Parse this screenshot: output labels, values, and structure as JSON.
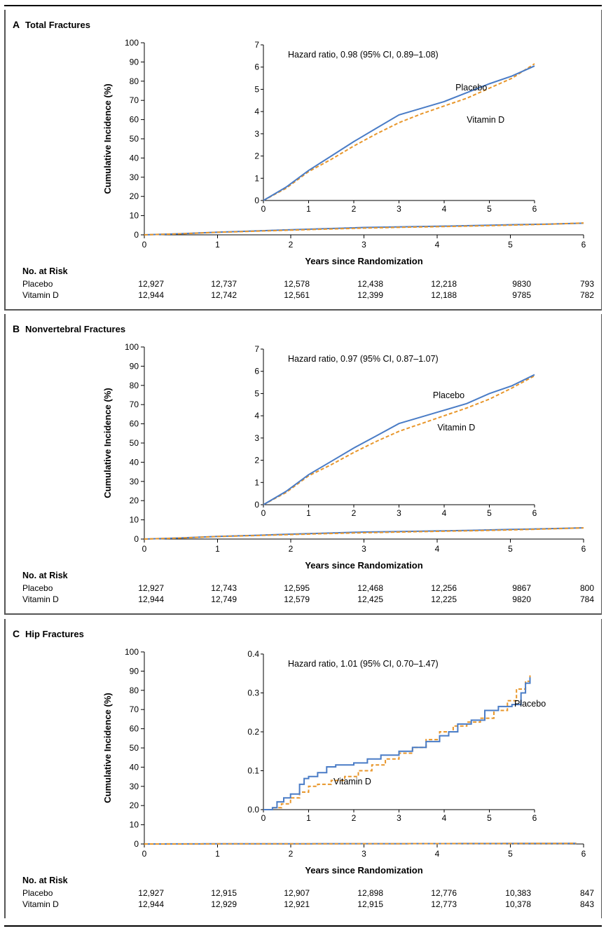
{
  "panels": [
    {
      "letter": "A",
      "title": "Total Fractures",
      "chart_data": {
        "type": "line",
        "ylabel": "Cumulative Incidence (%)",
        "xlabel": "Years since Randomization",
        "xlim": [
          0,
          6
        ],
        "ylim": [
          0,
          100
        ],
        "xticks": [
          "0",
          "1",
          "2",
          "3",
          "4",
          "5",
          "6"
        ],
        "yticks": [
          "0",
          "10",
          "20",
          "30",
          "40",
          "50",
          "60",
          "70",
          "80",
          "90",
          "100"
        ],
        "series": [
          {
            "name": "Placebo",
            "color": "#4a7cc6",
            "style": "solid",
            "x": [
              0,
              0.5,
              1,
              1.5,
              2,
              2.5,
              3,
              3.5,
              4,
              4.5,
              5,
              5.5,
              6
            ],
            "y": [
              0,
              0.6,
              1.35,
              2.0,
              2.65,
              3.25,
              3.85,
              4.15,
              4.45,
              4.85,
              5.25,
              5.6,
              6.05
            ]
          },
          {
            "name": "Vitamin D",
            "color": "#e8962a",
            "style": "dashed",
            "x": [
              0,
              0.5,
              1,
              1.5,
              2,
              2.5,
              3,
              3.5,
              4,
              4.5,
              5,
              5.5,
              6
            ],
            "y": [
              0,
              0.55,
              1.3,
              1.85,
              2.45,
              3.0,
              3.5,
              3.9,
              4.25,
              4.6,
              5.05,
              5.5,
              6.15
            ]
          }
        ],
        "inset": {
          "ylim": [
            0,
            7
          ],
          "yticks": [
            "0",
            "1",
            "2",
            "3",
            "4",
            "5",
            "6",
            "7"
          ],
          "xticks": [
            "0",
            "1",
            "2",
            "3",
            "4",
            "5",
            "6"
          ],
          "annotation": "Hazard ratio, 0.98 (95% CI, 0.89–1.08)",
          "labels": [
            {
              "text": "Placebo",
              "x": 4.25,
              "y": 4.95
            },
            {
              "text": "Vitamin D",
              "x": 4.5,
              "y": 3.5
            }
          ]
        }
      },
      "risk": {
        "title": "No. at Risk",
        "rows": [
          {
            "label": "Placebo",
            "values": [
              "12,927",
              "12,737",
              "12,578",
              "12,438",
              "12,218",
              "9830",
              "793"
            ]
          },
          {
            "label": "Vitamin D",
            "values": [
              "12,944",
              "12,742",
              "12,561",
              "12,399",
              "12,188",
              "9785",
              "782"
            ]
          }
        ]
      }
    },
    {
      "letter": "B",
      "title": "Nonvertebral Fractures",
      "chart_data": {
        "type": "line",
        "ylabel": "Cumulative Incidence (%)",
        "xlabel": "Years since Randomization",
        "xlim": [
          0,
          6
        ],
        "ylim": [
          0,
          100
        ],
        "xticks": [
          "0",
          "1",
          "2",
          "3",
          "4",
          "5",
          "6"
        ],
        "yticks": [
          "0",
          "10",
          "20",
          "30",
          "40",
          "50",
          "60",
          "70",
          "80",
          "90",
          "100"
        ],
        "series": [
          {
            "name": "Placebo",
            "color": "#4a7cc6",
            "style": "solid",
            "x": [
              0,
              0.5,
              1,
              1.5,
              2,
              2.5,
              3,
              3.5,
              4,
              4.5,
              5,
              5.5,
              6
            ],
            "y": [
              0,
              0.6,
              1.35,
              1.95,
              2.55,
              3.1,
              3.65,
              3.95,
              4.25,
              4.55,
              5.0,
              5.35,
              5.85
            ]
          },
          {
            "name": "Vitamin D",
            "color": "#e8962a",
            "style": "dashed",
            "x": [
              0,
              0.5,
              1,
              1.5,
              2,
              2.5,
              3,
              3.5,
              4,
              4.5,
              5,
              5.5,
              6
            ],
            "y": [
              0,
              0.55,
              1.3,
              1.8,
              2.35,
              2.85,
              3.3,
              3.65,
              4.0,
              4.35,
              4.75,
              5.25,
              5.8
            ]
          }
        ],
        "inset": {
          "ylim": [
            0,
            7
          ],
          "yticks": [
            "0",
            "1",
            "2",
            "3",
            "4",
            "5",
            "6",
            "7"
          ],
          "xticks": [
            "0",
            "1",
            "2",
            "3",
            "4",
            "5",
            "6"
          ],
          "annotation": "Hazard ratio, 0.97 (95% CI, 0.87–1.07)",
          "labels": [
            {
              "text": "Placebo",
              "x": 3.75,
              "y": 4.8
            },
            {
              "text": "Vitamin D",
              "x": 3.85,
              "y": 3.35
            }
          ]
        }
      },
      "risk": {
        "title": "No. at Risk",
        "rows": [
          {
            "label": "Placebo",
            "values": [
              "12,927",
              "12,743",
              "12,595",
              "12,468",
              "12,256",
              "9867",
              "800"
            ]
          },
          {
            "label": "Vitamin D",
            "values": [
              "12,944",
              "12,749",
              "12,579",
              "12,425",
              "12,225",
              "9820",
              "784"
            ]
          }
        ]
      }
    },
    {
      "letter": "C",
      "title": "Hip Fractures",
      "chart_data": {
        "type": "line",
        "ylabel": "Cumulative Incidence (%)",
        "xlabel": "Years since Randomization",
        "xlim": [
          0,
          6
        ],
        "ylim": [
          0,
          100
        ],
        "xticks": [
          "0",
          "1",
          "2",
          "3",
          "4",
          "5",
          "6"
        ],
        "yticks": [
          "0",
          "10",
          "20",
          "30",
          "40",
          "50",
          "60",
          "70",
          "80",
          "90",
          "100"
        ],
        "series": [
          {
            "name": "Placebo",
            "color": "#4a7cc6",
            "style": "solid",
            "x": [
              0,
              0.2,
              0.3,
              0.45,
              0.6,
              0.8,
              0.9,
              1.0,
              1.2,
              1.4,
              1.6,
              2.0,
              2.3,
              2.6,
              3.0,
              3.3,
              3.6,
              3.9,
              4.1,
              4.3,
              4.6,
              4.9,
              5.2,
              5.5,
              5.7,
              5.8,
              5.9
            ],
            "y": [
              0,
              0.005,
              0.02,
              0.03,
              0.04,
              0.065,
              0.08,
              0.085,
              0.095,
              0.11,
              0.115,
              0.12,
              0.13,
              0.14,
              0.15,
              0.16,
              0.175,
              0.19,
              0.2,
              0.22,
              0.23,
              0.255,
              0.265,
              0.27,
              0.3,
              0.325,
              0.34
            ]
          },
          {
            "name": "Vitamin D",
            "color": "#e8962a",
            "style": "dashed",
            "x": [
              0,
              0.2,
              0.4,
              0.6,
              0.8,
              1.0,
              1.2,
              1.5,
              1.8,
              2.1,
              2.4,
              2.7,
              3.0,
              3.3,
              3.6,
              3.9,
              4.2,
              4.5,
              4.8,
              5.1,
              5.4,
              5.6,
              5.8,
              5.9
            ],
            "y": [
              0,
              0.005,
              0.015,
              0.03,
              0.045,
              0.06,
              0.065,
              0.075,
              0.085,
              0.1,
              0.115,
              0.13,
              0.145,
              0.16,
              0.18,
              0.2,
              0.215,
              0.225,
              0.235,
              0.255,
              0.28,
              0.31,
              0.33,
              0.345
            ]
          }
        ],
        "inset": {
          "ylim": [
            0,
            0.4
          ],
          "yticks": [
            "0.0",
            "0.1",
            "0.2",
            "0.3",
            "0.4"
          ],
          "xticks": [
            "0",
            "1",
            "2",
            "3",
            "4",
            "5",
            "6"
          ],
          "annotation": "Hazard ratio, 1.01 (95% CI, 0.70–1.47)",
          "labels": [
            {
              "text": "Placebo",
              "x": 5.55,
              "y": 0.265
            },
            {
              "text": "Vitamin D",
              "x": 1.55,
              "y": 0.065
            }
          ]
        }
      },
      "risk": {
        "title": "No. at Risk",
        "rows": [
          {
            "label": "Placebo",
            "values": [
              "12,927",
              "12,915",
              "12,907",
              "12,898",
              "12,776",
              "10,383",
              "847"
            ]
          },
          {
            "label": "Vitamin D",
            "values": [
              "12,944",
              "12,929",
              "12,921",
              "12,915",
              "12,773",
              "10,378",
              "843"
            ]
          }
        ]
      }
    }
  ]
}
